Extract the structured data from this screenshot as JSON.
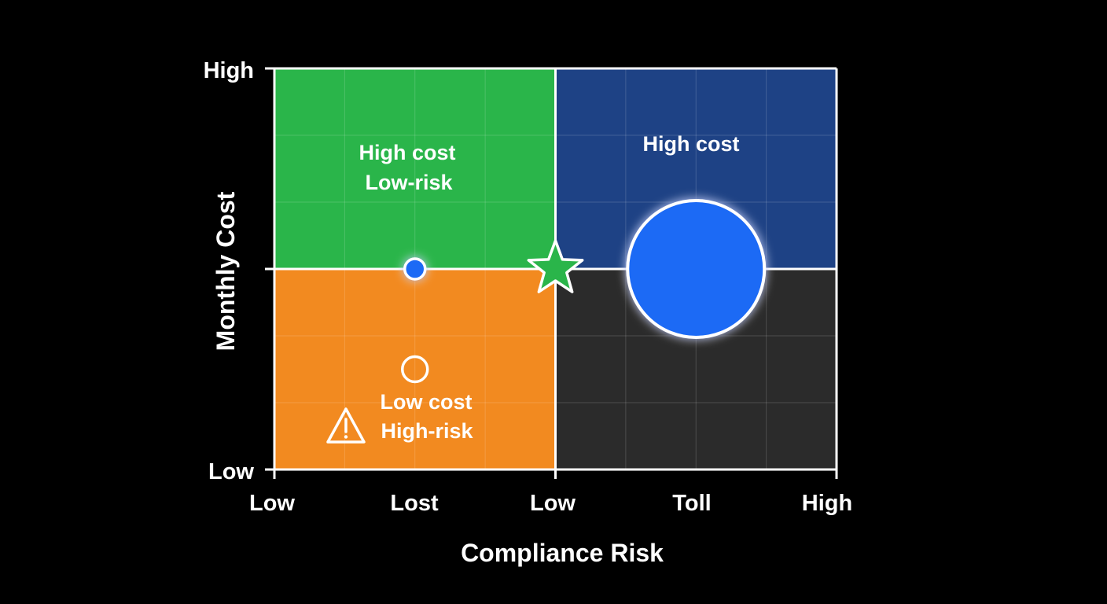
{
  "chart_data": {
    "type": "scatter",
    "title": "",
    "xlabel": "Compliance Risk",
    "ylabel": "Monthly Cost",
    "x_ticks": [
      "Low",
      "Lost",
      "Low",
      "Toll",
      "High"
    ],
    "y_ticks": [
      "High",
      "Low"
    ],
    "xlim": [
      0,
      4
    ],
    "ylim": [
      0,
      2
    ],
    "grid": true,
    "quadrants": [
      {
        "id": "top-left",
        "lines": [
          "High cost",
          "Low-risk"
        ],
        "color": "#2AB54A"
      },
      {
        "id": "top-right",
        "lines": [
          "High cost"
        ],
        "color": "#1E4285"
      },
      {
        "id": "bottom-left",
        "lines": [
          "Low cost",
          "High-risk"
        ],
        "color": "#F28A20",
        "icon": "warning-icon"
      },
      {
        "id": "bottom-right",
        "lines": [],
        "color": "#2B2B2B"
      }
    ],
    "points": [
      {
        "shape": "circle",
        "x": 1.0,
        "y": 1.0,
        "size": "small",
        "fill": "#1F6BF5"
      },
      {
        "shape": "hollow-circle",
        "x": 1.0,
        "y": 0.5,
        "size": "small"
      },
      {
        "shape": "star",
        "x": 2.0,
        "y": 1.0,
        "fill": "#2AB54A"
      },
      {
        "shape": "circle",
        "x": 3.0,
        "y": 1.0,
        "size": "large",
        "fill": "#1F6BF5"
      }
    ]
  }
}
